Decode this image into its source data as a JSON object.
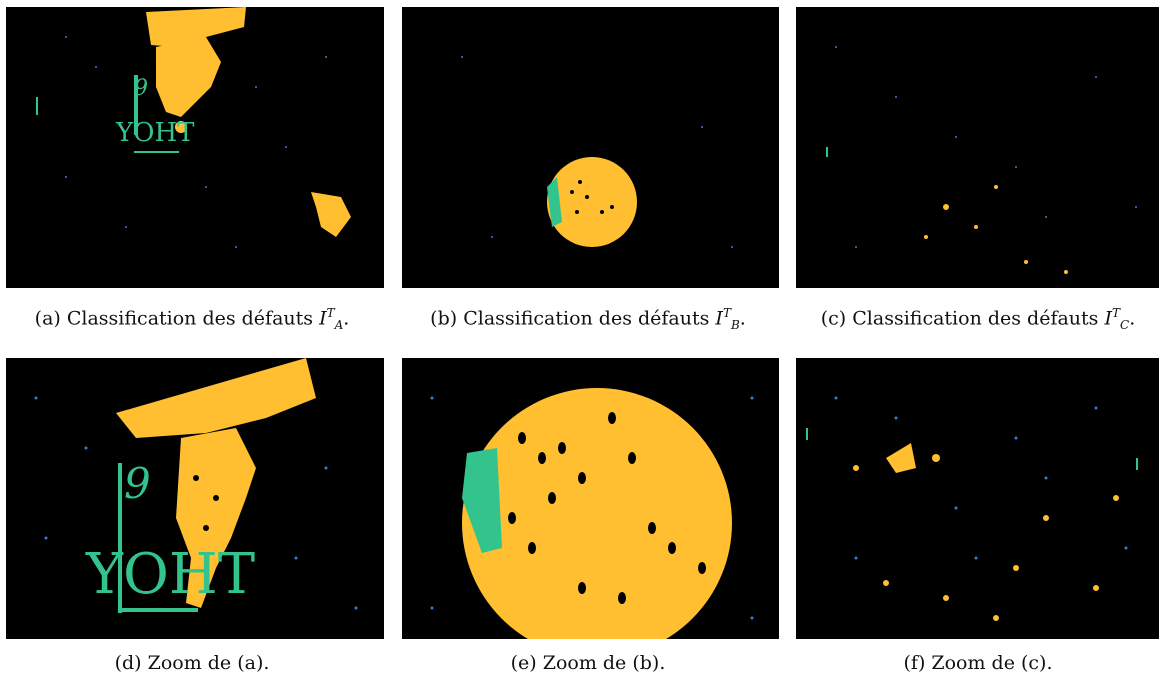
{
  "colors": {
    "background": "#000000",
    "defect_yellow": "#FFBF31",
    "defect_green": "#33C48E",
    "defect_blue": "#3C7BE0"
  },
  "figures": [
    {
      "id": "a",
      "caption_prefix": "(a) Classification des défauts ",
      "symbol": "I",
      "sub": "A",
      "sup": "T",
      "caption_suffix": "."
    },
    {
      "id": "b",
      "caption_prefix": "(b) Classification des défauts ",
      "symbol": "I",
      "sub": "B",
      "sup": "T",
      "caption_suffix": "."
    },
    {
      "id": "c",
      "caption_prefix": "(c) Classification des défauts ",
      "symbol": "I",
      "sub": "C",
      "sup": "T",
      "caption_suffix": "."
    },
    {
      "id": "d",
      "caption": "(d) Zoom de (a)."
    },
    {
      "id": "e",
      "caption": "(e) Zoom de (b)."
    },
    {
      "id": "f",
      "caption": "(f) Zoom de (c)."
    }
  ],
  "image_text": {
    "letters_small": "9",
    "letters_small_2": "YOHT",
    "letters_large": "9",
    "letters_large_2": "YOHT"
  }
}
